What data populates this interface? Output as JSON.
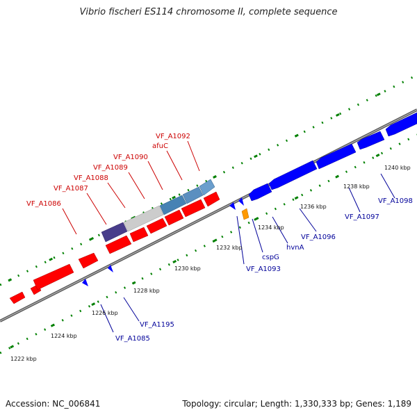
{
  "title": "Vibrio fischeri ES114 chromosome II, complete sequence",
  "footer": {
    "accession": "Accession: NC_006841",
    "summary": "Topology: circular; Length: 1,330,333 bp; Genes: 1,189"
  },
  "colors": {
    "forward_gene": "#ff0000",
    "reverse_gene": "#0000ff",
    "forward_label": "#cc0000",
    "reverse_label": "#000099",
    "dark_purple": "#483d8b",
    "light_gray": "#cccccc",
    "steel_blue": "#4682b4",
    "orange": "#ff9900",
    "tick_green": "#008000",
    "backbone": "#777777"
  },
  "scale_labels": [
    "1222 kbp",
    "1224 kbp",
    "1226 kbp",
    "1228 kbp",
    "1230 kbp",
    "1232 kbp",
    "1234 kbp",
    "1236 kbp",
    "1238 kbp",
    "1240 kbp"
  ],
  "forward_labels": [
    "VF_A1086",
    "VF_A1087",
    "VF_A1088",
    "VF_A1089",
    "VF_A1090",
    "afuC",
    "VF_A1092"
  ],
  "reverse_labels": [
    "VF_A1085",
    "VF_A1195",
    "VF_A1093",
    "cspG",
    "hvnA",
    "VF_A1096",
    "VF_A1097",
    "VF_A1098"
  ]
}
